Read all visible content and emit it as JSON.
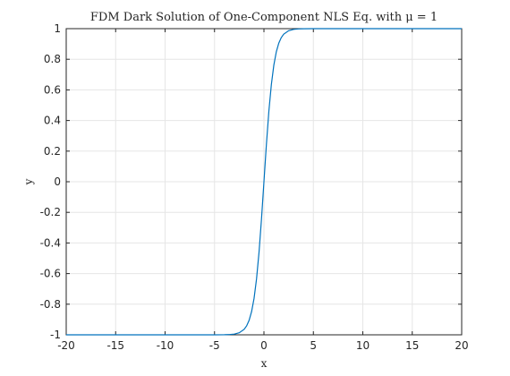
{
  "chart_data": {
    "type": "line",
    "title": "FDM Dark Solution of One-Component NLS Eq. with μ = 1",
    "xlabel": "x",
    "ylabel": "y",
    "xlim": [
      -20,
      20
    ],
    "ylim": [
      -1,
      1
    ],
    "grid": true,
    "xticks": [
      -20,
      -15,
      -10,
      -5,
      0,
      5,
      10,
      15,
      20
    ],
    "xtick_labels": [
      "-20",
      "-15",
      "-10",
      "-5",
      "0",
      "5",
      "10",
      "15",
      "20"
    ],
    "yticks": [
      -1,
      -0.8,
      -0.6,
      -0.4,
      -0.2,
      0,
      0.2,
      0.4,
      0.6,
      0.8,
      1
    ],
    "ytick_labels": [
      "-1",
      "-0.8",
      "-0.6",
      "-0.4",
      "-0.2",
      "0",
      "0.2",
      "0.4",
      "0.6",
      "0.8",
      "1"
    ],
    "series": [
      {
        "color": "#0072bd",
        "x": [
          -20,
          -10,
          -5,
          -4,
          -3.5,
          -3,
          -2.5,
          -2,
          -1.75,
          -1.5,
          -1.25,
          -1,
          -0.75,
          -0.5,
          -0.25,
          0,
          0.25,
          0.5,
          0.75,
          1,
          1.25,
          1.5,
          1.75,
          2,
          2.5,
          3,
          3.5,
          4,
          5,
          10,
          20
        ],
        "y": [
          -1,
          -1,
          -1,
          -0.9993,
          -0.9982,
          -0.9951,
          -0.9866,
          -0.964,
          -0.9414,
          -0.9051,
          -0.8483,
          -0.7616,
          -0.6351,
          -0.4621,
          -0.2449,
          0,
          0.2449,
          0.4621,
          0.6351,
          0.7616,
          0.8483,
          0.9051,
          0.9414,
          0.964,
          0.9866,
          0.9951,
          0.9982,
          0.9993,
          1,
          1,
          1
        ]
      }
    ]
  }
}
